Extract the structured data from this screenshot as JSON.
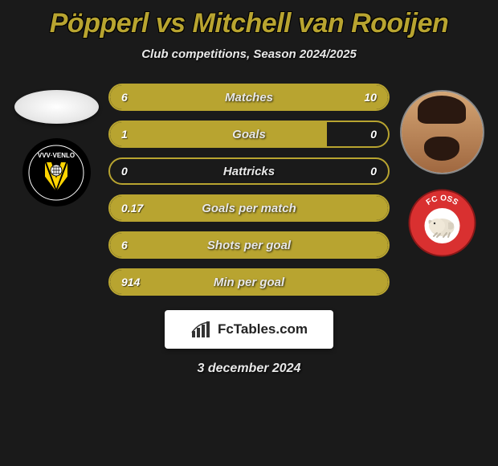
{
  "title": "Pöpperl vs Mitchell van Rooijen",
  "subtitle": "Club competitions, Season 2024/2025",
  "date": "3 december 2024",
  "footer_brand": "FcTables.com",
  "colors": {
    "accent": "#b8a430",
    "bg": "#1a1a1a",
    "text": "#e8e8e8"
  },
  "player_left": {
    "name": "Pöpperl",
    "club_badge": {
      "bg": "#000000",
      "shield": "#ffd400",
      "label": "VVV"
    }
  },
  "player_right": {
    "name": "Mitchell van Rooijen",
    "club_badge": {
      "bg": "#d93030",
      "inner": "#ffffff",
      "label": "FC OSS"
    }
  },
  "stats": [
    {
      "label": "Matches",
      "left_val": "6",
      "right_val": "10",
      "fill_left_pct": 37,
      "fill_right_pct": 63
    },
    {
      "label": "Goals",
      "left_val": "1",
      "right_val": "0",
      "fill_left_pct": 78,
      "fill_right_pct": 0
    },
    {
      "label": "Hattricks",
      "left_val": "0",
      "right_val": "0",
      "fill_left_pct": 0,
      "fill_right_pct": 0
    },
    {
      "label": "Goals per match",
      "left_val": "0.17",
      "right_val": "",
      "fill_left_pct": 100,
      "fill_right_pct": 0
    },
    {
      "label": "Shots per goal",
      "left_val": "6",
      "right_val": "",
      "fill_left_pct": 100,
      "fill_right_pct": 0
    },
    {
      "label": "Min per goal",
      "left_val": "914",
      "right_val": "",
      "fill_left_pct": 100,
      "fill_right_pct": 0
    }
  ]
}
